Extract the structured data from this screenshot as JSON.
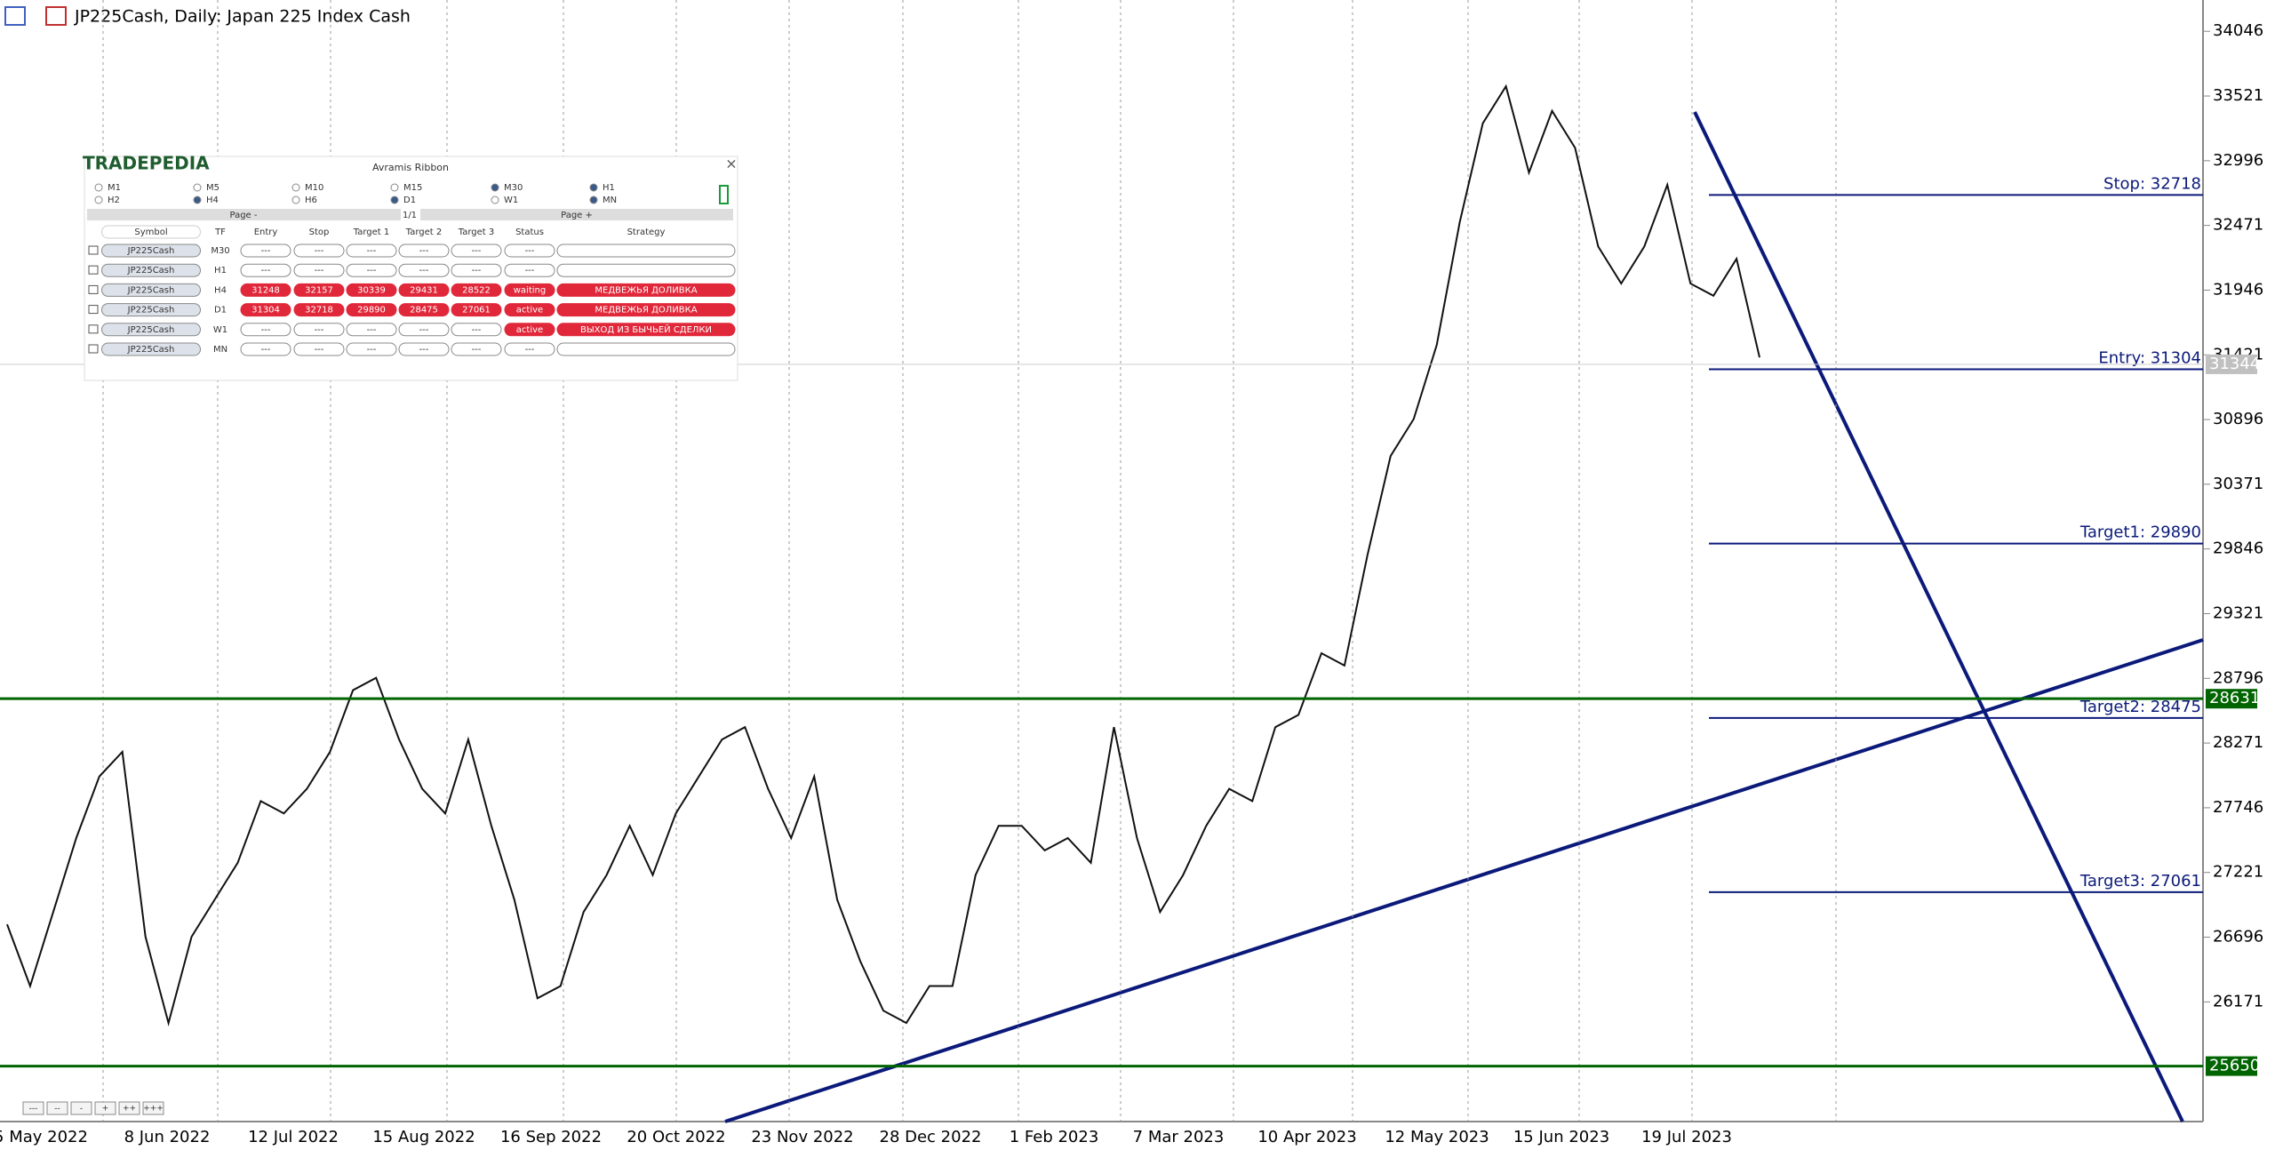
{
  "header": {
    "title": "JP225Cash, Daily:  Japan 225 Index Cash"
  },
  "price_axis": {
    "ylim": [
      25200,
      34300
    ],
    "ticks": [
      34046,
      33521,
      32996,
      32471,
      31946,
      31421,
      30896,
      30371,
      29846,
      29321,
      28796,
      28271,
      27746,
      27221,
      26696,
      26171
    ]
  },
  "time_axis": {
    "labels": [
      "5 May 2022",
      "8 Jun 2022",
      "12 Jul 2022",
      "15 Aug 2022",
      "16 Sep 2022",
      "20 Oct 2022",
      "23 Nov 2022",
      "28 Dec 2022",
      "1 Feb 2023",
      "7 Mar 2023",
      "10 Apr 2023",
      "12 May 2023",
      "15 Jun 2023",
      "19 Jul 2023"
    ]
  },
  "price_path": {
    "color": "#111111",
    "values": [
      26800,
      26300,
      26900,
      27500,
      28000,
      28200,
      26700,
      26000,
      26700,
      27000,
      27300,
      27800,
      27700,
      27900,
      28200,
      28700,
      28800,
      28300,
      27900,
      27700,
      28300,
      27600,
      27000,
      26200,
      26300,
      26900,
      27200,
      27600,
      27200,
      27700,
      28000,
      28300,
      28400,
      27900,
      27500,
      28000,
      27000,
      26500,
      26100,
      26000,
      26300,
      26300,
      27200,
      27600,
      27600,
      27400,
      27500,
      27300,
      28400,
      27500,
      26900,
      27200,
      27600,
      27900,
      27800,
      28400,
      28500,
      29000,
      28900,
      29800,
      30600,
      30900,
      31500,
      32500,
      33300,
      33600,
      32900,
      33400,
      33100,
      32300,
      32000,
      32300,
      32800,
      32000,
      31900,
      32200,
      31400
    ]
  },
  "levels": [
    {
      "label": "Stop: 32718",
      "value": 32718
    },
    {
      "label": "Entry: 31304",
      "value": 31304
    },
    {
      "label": "Target1: 29890",
      "value": 29890
    },
    {
      "label": "Target2: 28475",
      "value": 28475
    },
    {
      "label": "Target3: 27061",
      "value": 27061
    }
  ],
  "badges": [
    {
      "label": "28631",
      "value": 28631,
      "color": "#006400"
    },
    {
      "label": "25650",
      "value": 25650,
      "color": "#006400"
    },
    {
      "label": "31344",
      "value": 31344,
      "color": "#c0c0c0"
    }
  ],
  "panel": {
    "brand": "TRADEPEDIA",
    "title": "Avramis Ribbon",
    "close": "×",
    "timeframes": [
      {
        "label": "M1",
        "checked": false
      },
      {
        "label": "M5",
        "checked": false
      },
      {
        "label": "M10",
        "checked": false
      },
      {
        "label": "M15",
        "checked": false
      },
      {
        "label": "M30",
        "checked": true
      },
      {
        "label": "H1",
        "checked": true
      },
      {
        "label": "H2",
        "checked": false
      },
      {
        "label": "H4",
        "checked": true
      },
      {
        "label": "H6",
        "checked": false
      },
      {
        "label": "D1",
        "checked": true
      },
      {
        "label": "W1",
        "checked": false
      },
      {
        "label": "MN",
        "checked": true
      }
    ],
    "page_prev": "Page -",
    "page_num": "1/1",
    "page_next": "Page +"
  },
  "table": {
    "header": [
      "Symbol",
      "TF",
      "Entry",
      "Stop",
      "Target 1",
      "Target 2",
      "Target 3",
      "Status",
      "Strategy"
    ],
    "rows": [
      [
        "JP225Cash",
        "M30",
        "---",
        "---",
        "---",
        "---",
        "---",
        "---",
        null
      ],
      [
        "JP225Cash",
        "H1",
        "---",
        "---",
        "---",
        "---",
        "---",
        "---",
        null
      ],
      [
        "JP225Cash",
        "H4",
        "31248",
        "32157",
        "30339",
        "29431",
        "28522",
        "waiting",
        "МЕДВЕЖЬЯ ДОЛИВКА"
      ],
      [
        "JP225Cash",
        "D1",
        "31304",
        "32718",
        "29890",
        "28475",
        "27061",
        "active",
        "МЕДВЕЖЬЯ ДОЛИВКА"
      ],
      [
        "JP225Cash",
        "W1",
        "---",
        "---",
        "---",
        "---",
        "---",
        "active",
        "ВЫХОД ИЗ БЫЧЬЕЙ СДЕЛКИ"
      ],
      [
        "JP225Cash",
        "MN",
        "---",
        "---",
        "---",
        "---",
        "---",
        "---",
        null
      ]
    ]
  },
  "zoom_buttons": [
    "---",
    "--",
    "-",
    "+",
    "++",
    "+++"
  ]
}
